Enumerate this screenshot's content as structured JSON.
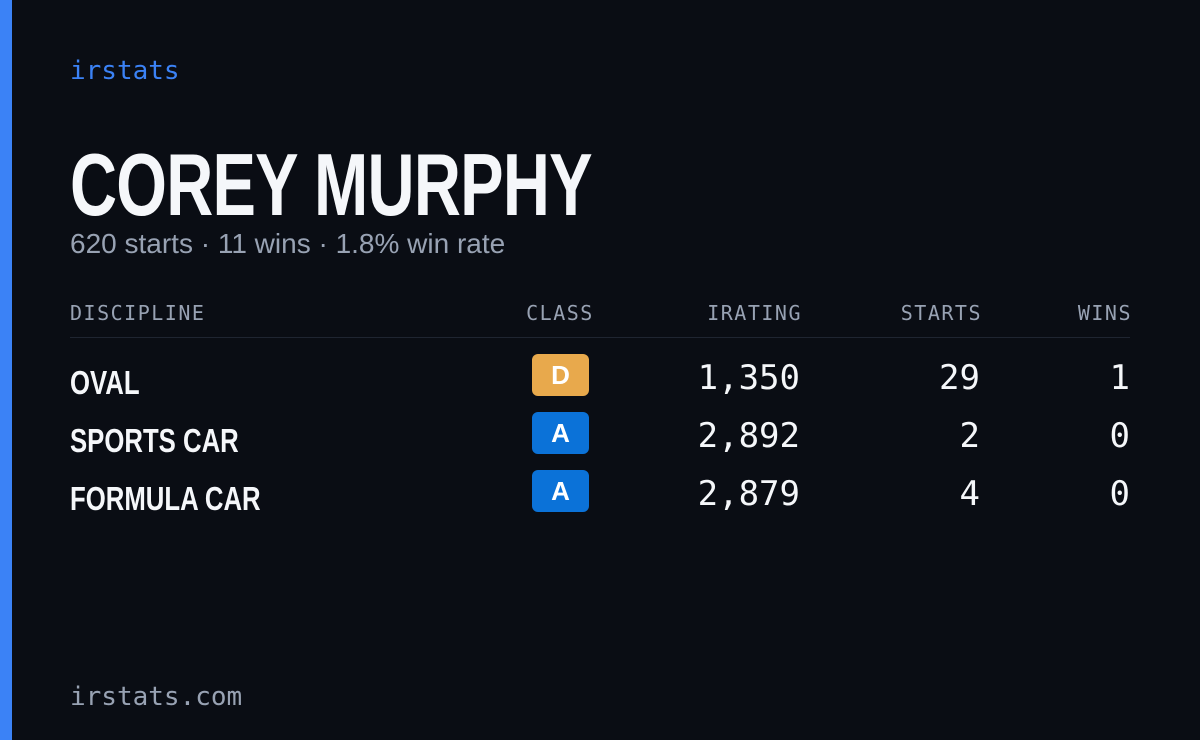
{
  "brand": "irstats",
  "profile": {
    "name": "COREY MURPHY",
    "summary": "620 starts · 11 wins · 1.8% win rate"
  },
  "table": {
    "headers": [
      "DISCIPLINE",
      "CLASS",
      "IRATING",
      "STARTS",
      "WINS"
    ],
    "rows": [
      [
        "OVAL",
        "D",
        "1,350",
        "29",
        "1"
      ],
      [
        "SPORTS CAR",
        "A",
        "2,892",
        "2",
        "0"
      ],
      [
        "FORMULA CAR",
        "A",
        "2,879",
        "4",
        "0"
      ]
    ]
  },
  "footer": "irstats.com"
}
